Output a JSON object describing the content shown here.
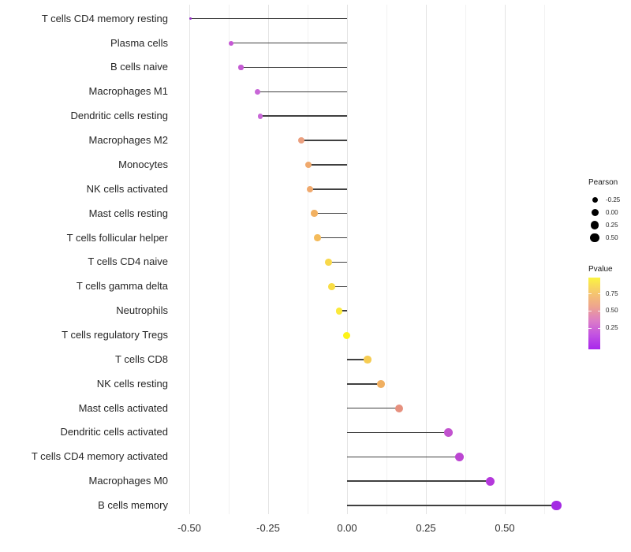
{
  "chart_data": {
    "type": "lollipop",
    "orientation": "horizontal",
    "title": "",
    "xlabel": "",
    "ylabel": "",
    "grid": "vertical-only",
    "xlim": [
      -0.55,
      0.72
    ],
    "x_major_ticks": [
      {
        "label": "-0.50",
        "value": -0.5
      },
      {
        "label": "-0.25",
        "value": -0.25
      },
      {
        "label": "0.00",
        "value": 0.0
      },
      {
        "label": "0.25",
        "value": 0.25
      },
      {
        "label": "0.50",
        "value": 0.5
      }
    ],
    "x_minor_ticks": [
      -0.375,
      -0.125,
      0.125,
      0.375,
      0.625
    ],
    "categories": [
      "T cells CD4 memory resting",
      "Plasma cells",
      "B cells naive",
      "Macrophages M1",
      "Dendritic cells resting",
      "Macrophages M2",
      "Monocytes",
      "NK cells activated",
      "Mast cells resting",
      "T cells follicular helper",
      "T cells CD4 naive",
      "T cells gamma delta",
      "Neutrophils",
      "T cells regulatory  Tregs",
      "T cells CD8",
      "NK cells resting",
      "Mast cells activated",
      "Dendritic cells activated",
      "T cells CD4 memory activated",
      "Macrophages M0",
      "B cells memory"
    ],
    "series": [
      {
        "name": "Pearson correlation",
        "values": [
          -0.497,
          -0.367,
          -0.336,
          -0.284,
          -0.275,
          -0.144,
          -0.122,
          -0.117,
          -0.104,
          -0.094,
          -0.058,
          -0.048,
          -0.025,
          -0.001,
          0.065,
          0.108,
          0.164,
          0.322,
          0.357,
          0.453,
          0.664
        ]
      }
    ],
    "point_colors": [
      "#9632C8",
      "#C657D5",
      "#C45AD3",
      "#C867D7",
      "#C867D7",
      "#EB9F7E",
      "#F0A96D",
      "#F0A96D",
      "#F2B161",
      "#F4BB5B",
      "#F8D84A",
      "#F9DD45",
      "#FBE93B",
      "#FDF318",
      "#F6CC52",
      "#F0AF60",
      "#E6907E",
      "#C253CF",
      "#BC46D2",
      "#B438DB",
      "#A42AE3"
    ],
    "stick_color": "#404040"
  },
  "legends": {
    "size": {
      "title": "Pearson",
      "dot_color": "#000000",
      "items": [
        {
          "label": "-0.25",
          "value": -0.25
        },
        {
          "label": "0.00",
          "value": 0.0
        },
        {
          "label": "0.25",
          "value": 0.25
        },
        {
          "label": "0.50",
          "value": 0.5
        }
      ]
    },
    "color": {
      "title": "Pvalue",
      "ticks": [
        {
          "label": "0.75",
          "frac_from_top": 0.22
        },
        {
          "label": "0.50",
          "frac_from_top": 0.46
        },
        {
          "label": "0.25",
          "frac_from_top": 0.7
        }
      ],
      "gradient_top_to_bottom": [
        "#FBF440",
        "#F6C96C",
        "#EEA58D",
        "#DC7DC6",
        "#C252E2",
        "#A826EC"
      ]
    }
  }
}
